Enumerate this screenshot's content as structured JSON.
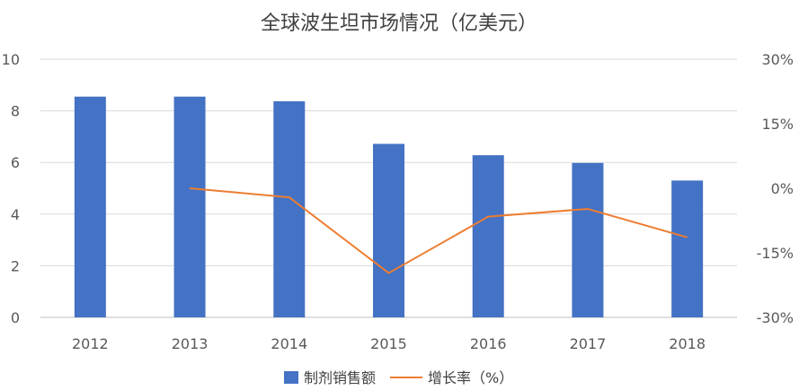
{
  "chart_data": {
    "type": "bar",
    "title": "全球波生坦市场情况（亿美元）",
    "categories": [
      "2012",
      "2013",
      "2014",
      "2015",
      "2016",
      "2017",
      "2018"
    ],
    "series": [
      {
        "name": "制剂销售额",
        "type": "bar",
        "axis": "left",
        "color": "#4472C4",
        "values": [
          8.55,
          8.55,
          8.37,
          6.72,
          6.28,
          5.98,
          5.3
        ]
      },
      {
        "name": "增长率（%）",
        "type": "line",
        "axis": "right",
        "color": "#ED7D31",
        "values": [
          null,
          0.0,
          -2.1,
          -19.7,
          -6.6,
          -4.8,
          -11.4
        ]
      }
    ],
    "y_left": {
      "min": 0,
      "max": 10,
      "ticks": [
        "0",
        "2",
        "4",
        "6",
        "8",
        "10"
      ]
    },
    "y_right": {
      "min": -30,
      "max": 30,
      "ticks": [
        "-30%",
        "-15%",
        "0%",
        "15%",
        "30%"
      ]
    },
    "grid": true,
    "legend_position": "bottom"
  }
}
